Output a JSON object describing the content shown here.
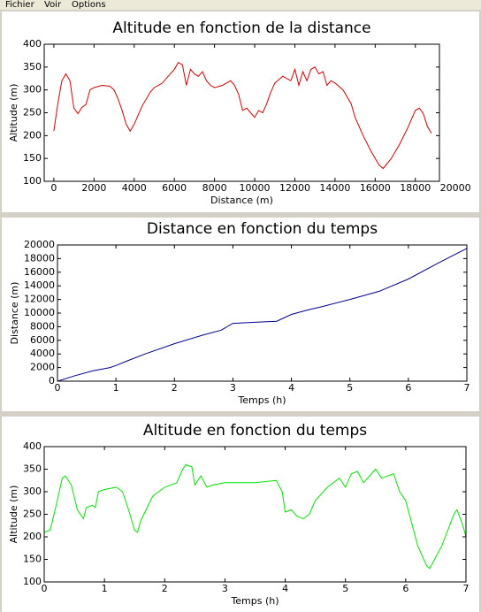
{
  "menu": [
    "Fichier",
    "Voir",
    "Options"
  ],
  "chart_data": [
    {
      "type": "line",
      "title": "Altitude en fonction de la distance",
      "x_label": "Distance (m)",
      "y_label": "Altitude (m)",
      "color": "#cc0000",
      "xlim": [
        -480,
        19200
      ],
      "xticks": [
        0,
        2000,
        4000,
        6000,
        8000,
        10000,
        12000,
        14000,
        16000,
        18000,
        20000
      ],
      "ylim": [
        100,
        400
      ],
      "yticks": [
        100,
        150,
        200,
        250,
        300,
        350,
        400
      ],
      "x": [
        0,
        200,
        400,
        600,
        800,
        1000,
        1200,
        1400,
        1600,
        1800,
        2000,
        2400,
        2800,
        3000,
        3200,
        3400,
        3600,
        3800,
        4000,
        4400,
        4800,
        5000,
        5400,
        5800,
        6000,
        6200,
        6400,
        6600,
        6800,
        7000,
        7200,
        7400,
        7600,
        7800,
        8000,
        8400,
        8800,
        9000,
        9200,
        9400,
        9600,
        9800,
        10000,
        10200,
        10400,
        10600,
        10800,
        11000,
        11400,
        11800,
        12000,
        12200,
        12400,
        12600,
        12800,
        13000,
        13200,
        13400,
        13600,
        13800,
        14000,
        14400,
        14800,
        15000,
        15400,
        15800,
        16200,
        16400,
        16800,
        17200,
        17600,
        18000,
        18200,
        18400,
        18600,
        18800
      ],
      "values": [
        210,
        270,
        320,
        335,
        320,
        260,
        248,
        262,
        268,
        300,
        305,
        310,
        308,
        300,
        280,
        255,
        225,
        210,
        225,
        265,
        295,
        305,
        315,
        335,
        345,
        360,
        355,
        310,
        345,
        335,
        330,
        340,
        320,
        310,
        305,
        310,
        320,
        310,
        290,
        255,
        260,
        250,
        240,
        255,
        250,
        270,
        295,
        315,
        330,
        320,
        345,
        310,
        340,
        320,
        345,
        350,
        335,
        340,
        310,
        320,
        315,
        300,
        270,
        240,
        200,
        165,
        135,
        128,
        150,
        180,
        215,
        255,
        260,
        248,
        220,
        205
      ]
    },
    {
      "type": "line",
      "title": "Distance en fonction du temps",
      "x_label": "Temps (h)",
      "y_label": "Distance (m)",
      "color": "#00008b",
      "xlim": [
        0,
        7
      ],
      "xticks": [
        0,
        1,
        2,
        3,
        4,
        5,
        6,
        7
      ],
      "ylim": [
        0,
        20000
      ],
      "yticks": [
        0,
        2000,
        4000,
        6000,
        8000,
        10000,
        12000,
        14000,
        16000,
        18000,
        20000
      ],
      "x": [
        0,
        0.3,
        0.6,
        0.9,
        1.0,
        1.2,
        1.5,
        2,
        2.5,
        2.8,
        3,
        3.5,
        3.75,
        4,
        4.3,
        4.5,
        5,
        5.5,
        6,
        6.5,
        7
      ],
      "values": [
        0,
        800,
        1500,
        2000,
        2300,
        3000,
        4000,
        5500,
        6800,
        7500,
        8500,
        8700,
        8800,
        9800,
        10500,
        10900,
        12000,
        13200,
        15000,
        17300,
        19500
      ]
    },
    {
      "type": "line",
      "title": "Altitude en fonction du temps",
      "x_label": "Temps (h)",
      "y_label": "Altitude (m)",
      "color": "#00e000",
      "xlim": [
        0,
        7
      ],
      "xticks": [
        0,
        1,
        2,
        3,
        4,
        5,
        6,
        7
      ],
      "ylim": [
        100,
        400
      ],
      "yticks": [
        100,
        150,
        200,
        250,
        300,
        350,
        400
      ],
      "x": [
        0,
        0.1,
        0.2,
        0.3,
        0.35,
        0.45,
        0.55,
        0.6,
        0.65,
        0.7,
        0.8,
        0.85,
        0.9,
        1.0,
        1.2,
        1.3,
        1.4,
        1.5,
        1.55,
        1.6,
        1.8,
        2.0,
        2.2,
        2.3,
        2.35,
        2.45,
        2.5,
        2.6,
        2.7,
        2.8,
        3,
        3.5,
        3.85,
        3.95,
        4,
        4.1,
        4.2,
        4.3,
        4.4,
        4.5,
        4.7,
        4.9,
        5,
        5.1,
        5.2,
        5.3,
        5.5,
        5.6,
        5.8,
        5.9,
        6,
        6.2,
        6.35,
        6.4,
        6.6,
        6.8,
        6.85,
        6.95,
        7
      ],
      "values": [
        210,
        215,
        270,
        330,
        335,
        315,
        260,
        250,
        240,
        265,
        270,
        265,
        300,
        305,
        310,
        300,
        260,
        215,
        210,
        235,
        290,
        310,
        320,
        350,
        360,
        355,
        315,
        335,
        310,
        315,
        320,
        320,
        325,
        300,
        255,
        260,
        245,
        240,
        250,
        280,
        310,
        330,
        310,
        340,
        345,
        320,
        350,
        330,
        340,
        300,
        280,
        180,
        135,
        130,
        180,
        250,
        260,
        225,
        200
      ]
    }
  ]
}
